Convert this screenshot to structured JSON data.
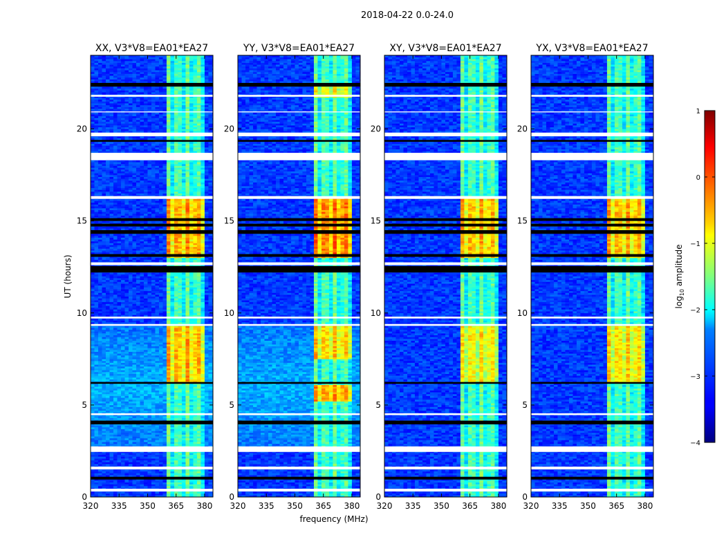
{
  "chart_data": {
    "type": "heatmap",
    "suptitle": "2018-04-22 0.0-24.0",
    "xlabel": "frequency (MHz)",
    "ylabel": "UT (hours)",
    "xlim": [
      320,
      384.4
    ],
    "ylim": [
      0,
      24
    ],
    "xticks": [
      320,
      335,
      350,
      365,
      380
    ],
    "yticks": [
      0,
      5,
      10,
      15,
      20
    ],
    "panels": [
      {
        "title": "XX, V3*V8=EA01*EA27",
        "base_boost": [
          [
            2.5,
            9.3,
            0.6
          ]
        ],
        "rfi_boost": [
          [
            6.2,
            9.3,
            1.2
          ],
          [
            13.0,
            16.3,
            1.3
          ]
        ]
      },
      {
        "title": "YY, V3*V8=EA01*EA27",
        "base_boost": [
          [
            2.5,
            9.3,
            0.6
          ]
        ],
        "rfi_boost": [
          [
            5.2,
            6.1,
            1.3
          ],
          [
            7.5,
            9.3,
            1.1
          ],
          [
            13.0,
            16.3,
            1.5
          ],
          [
            21.7,
            22.4,
            0.8
          ]
        ]
      },
      {
        "title": "XY, V3*V8=EA01*EA27",
        "base_boost": [],
        "rfi_boost": [
          [
            6.2,
            9.3,
            0.9
          ],
          [
            13.0,
            16.3,
            1.2
          ]
        ]
      },
      {
        "title": "YX, V3*V8=EA01*EA27",
        "base_boost": [],
        "rfi_boost": [
          [
            6.2,
            9.3,
            1.0
          ],
          [
            13.0,
            16.3,
            1.2
          ]
        ]
      }
    ],
    "base_log_amplitude": -3.1,
    "rfi_band_mhz": [
      360.7,
      380.4
    ],
    "rfi_log_amplitude": -1.9,
    "flagged_hours": [
      [
        0.3,
        0.45
      ],
      [
        1.5,
        1.65
      ],
      [
        2.45,
        2.75
      ],
      [
        4.45,
        4.55
      ],
      [
        9.3,
        9.4
      ],
      [
        9.7,
        9.8
      ],
      [
        12.6,
        12.75
      ],
      [
        16.2,
        16.35
      ],
      [
        18.3,
        18.7
      ],
      [
        19.6,
        19.8
      ],
      [
        20.9,
        20.95
      ],
      [
        21.75,
        21.85
      ]
    ],
    "missing_hours": [
      [
        0.95,
        1.1
      ],
      [
        3.95,
        4.15
      ],
      [
        6.15,
        6.25
      ],
      [
        12.2,
        12.55
      ],
      [
        13.05,
        13.2
      ],
      [
        14.3,
        14.5
      ],
      [
        14.7,
        14.85
      ],
      [
        15.0,
        15.15
      ],
      [
        19.3,
        19.4
      ],
      [
        22.3,
        22.5
      ]
    ],
    "colorbar": {
      "label": "log10 amplitude",
      "label_main": "log",
      "label_sub": "10",
      "label_rest": " amplitude",
      "range": [
        -4,
        1
      ],
      "ticks": [
        1,
        0,
        -1,
        -2,
        -3,
        -4
      ],
      "tick_labels": [
        "1",
        "0",
        "−1",
        "−2",
        "−3",
        "−4"
      ],
      "colormap": "jet"
    }
  }
}
